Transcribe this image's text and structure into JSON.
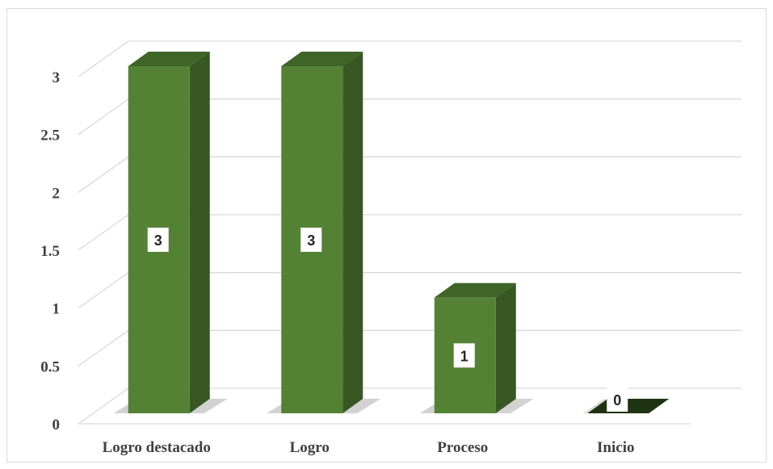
{
  "chart_data": {
    "type": "bar",
    "style": "3d-column",
    "categories": [
      "Logro destacado",
      "Logro",
      "Proceso",
      "Inicio"
    ],
    "values": [
      3,
      3,
      1,
      0
    ],
    "data_labels": [
      "3",
      "3",
      "1",
      "0"
    ],
    "yticks": [
      "0",
      "0.5",
      "1",
      "1.5",
      "2",
      "2.5",
      "3"
    ],
    "ylim": [
      0,
      3
    ],
    "title": "",
    "xlabel": "",
    "ylabel": "",
    "grid": true,
    "legend": "none",
    "colors": {
      "bar_front": "#548235",
      "bar_side": "#385723",
      "bar_top": "#3f6428",
      "zero_bar": "#1e3311",
      "grid": "#d9d9d9",
      "label_box": "#ffffff"
    }
  }
}
